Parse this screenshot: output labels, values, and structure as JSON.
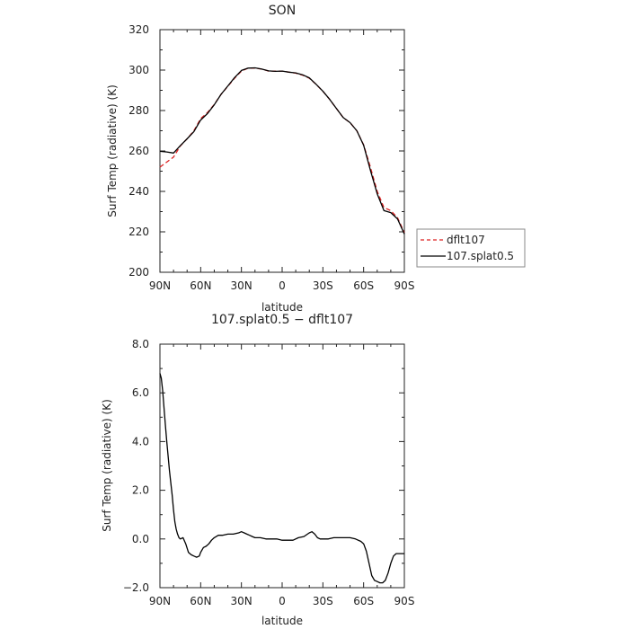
{
  "chart_data": [
    {
      "type": "line",
      "title": "SON",
      "xlabel": "latitude",
      "ylabel": "Surf Temp (radiative) (K)",
      "x_ticks": [
        "90N",
        "60N",
        "30N",
        "0",
        "30S",
        "60S",
        "90S"
      ],
      "x_tick_values": [
        90,
        60,
        30,
        0,
        -30,
        -60,
        -90
      ],
      "xlim": [
        90,
        -90
      ],
      "y_ticks": [
        "200",
        "220",
        "240",
        "260",
        "280",
        "300",
        "320"
      ],
      "y_tick_values": [
        200,
        220,
        240,
        260,
        280,
        300,
        320
      ],
      "ylim": [
        200,
        320
      ],
      "grid": false,
      "legend_position": "right, outside plot",
      "series": [
        {
          "name": "dflt107",
          "color": "#dd2222",
          "dash": true,
          "x": [
            90,
            85,
            80,
            75,
            70,
            65,
            60,
            55,
            50,
            45,
            40,
            35,
            30,
            25,
            20,
            15,
            10,
            5,
            0,
            -5,
            -10,
            -15,
            -20,
            -25,
            -30,
            -35,
            -40,
            -45,
            -50,
            -55,
            -60,
            -65,
            -70,
            -75,
            -80,
            -85,
            -90
          ],
          "values": [
            252,
            254.5,
            257,
            262.5,
            266,
            270,
            276,
            279,
            283,
            288,
            292,
            296,
            299.5,
            301,
            301,
            300.5,
            299.5,
            299.5,
            299.5,
            299,
            298.5,
            297.5,
            296,
            293,
            289.5,
            285.5,
            281,
            276.5,
            274,
            270,
            263,
            252,
            240,
            232,
            230.5,
            227,
            219.5
          ]
        },
        {
          "name": "107.splat0.5",
          "color": "#000000",
          "dash": false,
          "x": [
            90,
            85,
            80,
            75,
            70,
            65,
            60,
            55,
            50,
            45,
            40,
            35,
            30,
            25,
            20,
            15,
            10,
            5,
            0,
            -5,
            -10,
            -15,
            -20,
            -25,
            -30,
            -35,
            -40,
            -45,
            -50,
            -55,
            -60,
            -65,
            -70,
            -75,
            -80,
            -85,
            -90
          ],
          "values": [
            259.8,
            259.5,
            259,
            262.6,
            266,
            269.6,
            275.3,
            278.5,
            282.8,
            288,
            292.2,
            296.3,
            299.8,
            301,
            301.1,
            300.5,
            299.6,
            299.4,
            299.5,
            299,
            298.6,
            297.7,
            296.2,
            293,
            289.6,
            285.5,
            281,
            276.5,
            274,
            270,
            262.8,
            250.5,
            238.8,
            230.5,
            229.5,
            226.4,
            218.9
          ]
        }
      ]
    },
    {
      "type": "line",
      "title": "107.splat0.5 − dflt107",
      "xlabel": "latitude",
      "ylabel": "Surf Temp (radiative) (K)",
      "x_ticks": [
        "90N",
        "60N",
        "30N",
        "0",
        "30S",
        "60S",
        "90S"
      ],
      "x_tick_values": [
        90,
        60,
        30,
        0,
        -30,
        -60,
        -90
      ],
      "xlim": [
        90,
        -90
      ],
      "y_ticks": [
        "−2.0",
        "0.0",
        "2.0",
        "4.0",
        "6.0",
        "8.0"
      ],
      "y_tick_values": [
        -2,
        0,
        2,
        4,
        6,
        8
      ],
      "ylim": [
        -2,
        8
      ],
      "grid": false,
      "series": [
        {
          "color": "#000000",
          "dash": false,
          "x": [
            90,
            89,
            88,
            87,
            86,
            85,
            84,
            83,
            82,
            81,
            80,
            79,
            78,
            77,
            76,
            75,
            73,
            71,
            69,
            67,
            65,
            63,
            61,
            60,
            58,
            56,
            54,
            52,
            50,
            47,
            44,
            40,
            36,
            32,
            30,
            28,
            26,
            24,
            22,
            20,
            16,
            12,
            8,
            4,
            0,
            -4,
            -8,
            -12,
            -16,
            -20,
            -22,
            -24,
            -26,
            -28,
            -30,
            -34,
            -38,
            -42,
            -46,
            -50,
            -54,
            -58,
            -60,
            -62,
            -64,
            -66,
            -68,
            -70,
            -72,
            -74,
            -76,
            -78,
            -80,
            -82,
            -84,
            -86,
            -88,
            -90
          ],
          "values": [
            6.8,
            6.6,
            6.1,
            5.4,
            4.7,
            4.0,
            3.4,
            2.8,
            2.3,
            1.8,
            1.2,
            0.7,
            0.4,
            0.2,
            0.05,
            0.0,
            0.05,
            -0.2,
            -0.55,
            -0.65,
            -0.7,
            -0.75,
            -0.7,
            -0.55,
            -0.35,
            -0.3,
            -0.2,
            -0.05,
            0.05,
            0.15,
            0.15,
            0.2,
            0.2,
            0.25,
            0.3,
            0.25,
            0.2,
            0.15,
            0.1,
            0.05,
            0.05,
            0.0,
            0.0,
            0.0,
            -0.05,
            -0.05,
            -0.05,
            0.05,
            0.1,
            0.25,
            0.3,
            0.2,
            0.05,
            0.0,
            0.0,
            0.0,
            0.05,
            0.05,
            0.05,
            0.05,
            0.0,
            -0.1,
            -0.2,
            -0.5,
            -1.0,
            -1.5,
            -1.7,
            -1.75,
            -1.8,
            -1.8,
            -1.7,
            -1.4,
            -1.0,
            -0.7,
            -0.6,
            -0.6,
            -0.6,
            -0.6
          ]
        }
      ]
    }
  ]
}
